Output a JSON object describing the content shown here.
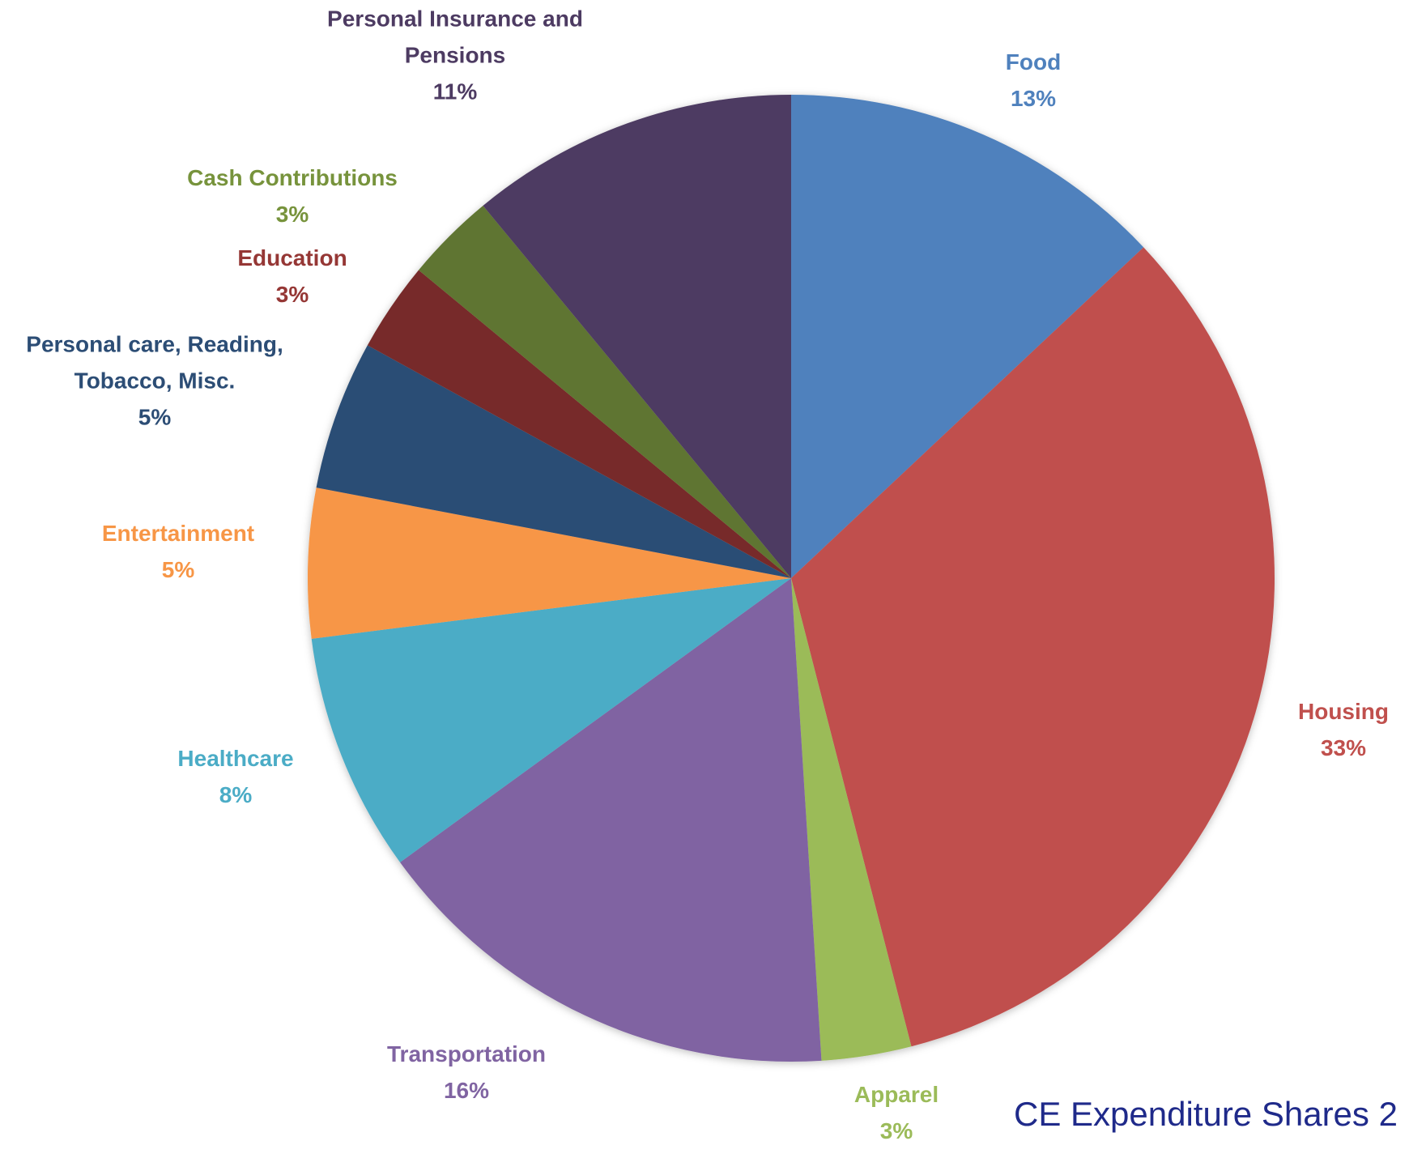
{
  "chart_data": {
    "type": "pie",
    "categories": [
      "Food",
      "Housing",
      "Apparel",
      "Transportation",
      "Healthcare",
      "Entertainment",
      "Personal care, Reading, Tobacco, Misc.",
      "Education",
      "Cash Contributions",
      "Personal Insurance and Pensions"
    ],
    "values": [
      13,
      33,
      3,
      16,
      8,
      5,
      5,
      3,
      3,
      11
    ],
    "value_labels": [
      "13%",
      "33%",
      "3%",
      "16%",
      "8%",
      "5%",
      "5%",
      "3%",
      "3%",
      "11%"
    ],
    "colors": [
      "#4f81bd",
      "#c0504d",
      "#9bbb59",
      "#8064a2",
      "#4bacc6",
      "#f79646",
      "#2c4d75",
      "#772c2a",
      "#5f7530",
      "#4d3b62"
    ],
    "label_colors": [
      "#4f81bd",
      "#c0504d",
      "#9bbb59",
      "#8064a2",
      "#4bacc6",
      "#f79646",
      "#2c4d75",
      "#953735",
      "#77933c",
      "#4d3b62"
    ],
    "caption": "CE Expenditure Shares 2"
  }
}
